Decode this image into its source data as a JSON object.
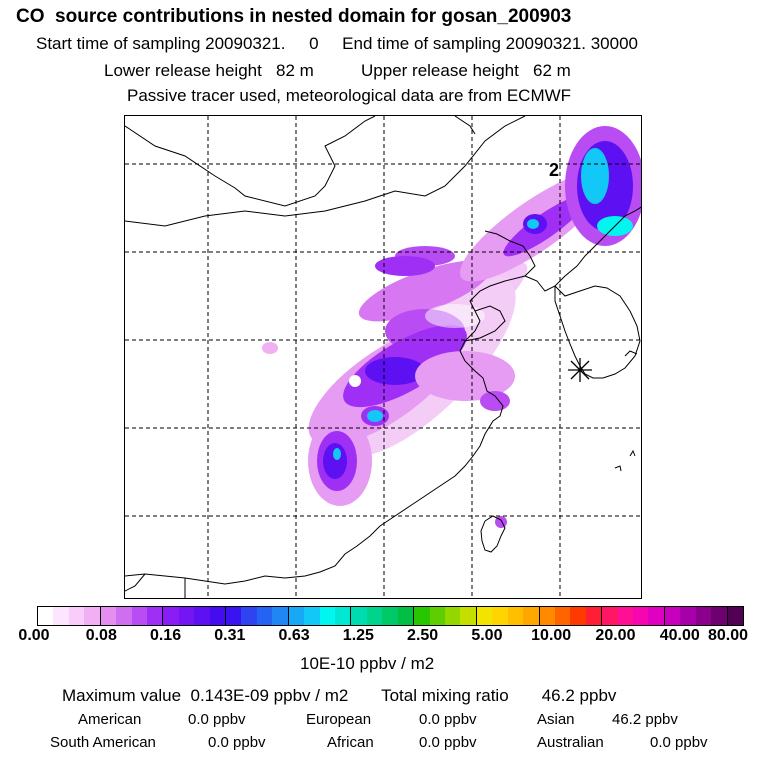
{
  "header": {
    "title": "CO  source contributions in nested domain for gosan_200903",
    "line1": "Start time of sampling 20090321.     0     End time of sampling 20090321. 30000",
    "line2": "Lower release height   82 m          Upper release height   62 m",
    "line3": "Passive tracer used, meteorological data are from ECMWF"
  },
  "map": {
    "station_marker": "asterisk-station-icon",
    "label_2": "2"
  },
  "colorbar": {
    "colors": [
      "#ffffff",
      "#fde6fd",
      "#f9cdf9",
      "#f1b0f3",
      "#e48ff0",
      "#d06ef0",
      "#b94cf2",
      "#a02ff5",
      "#8a1cf5",
      "#7416f3",
      "#5d10f2",
      "#460cf0",
      "#3a14f0",
      "#2e44f1",
      "#2563f2",
      "#1f86f4",
      "#18a9f6",
      "#12c8f7",
      "#00f6ee",
      "#00e8d4",
      "#00dcb0",
      "#00d38c",
      "#00c968",
      "#00bf44",
      "#27c600",
      "#5fce00",
      "#94d600",
      "#c6dd00",
      "#f2e300",
      "#ffd400",
      "#ffbe00",
      "#ffa600",
      "#ff8a00",
      "#ff6400",
      "#ff3a00",
      "#ff1f34",
      "#ff1766",
      "#ff0f94",
      "#f506b0",
      "#e000c2",
      "#c600bd",
      "#a800a8",
      "#8a008c",
      "#6e0070",
      "#520054"
    ],
    "tick_labels": [
      "0.00",
      "0.08",
      "0.16",
      "0.31",
      "0.63",
      "1.25",
      "2.50",
      "5.00",
      "10.00",
      "20.00",
      "40.00",
      "80.00"
    ]
  },
  "unit_label": "10E-10 ppbv / m2",
  "summary": {
    "max_label": "Maximum value",
    "max_value": "0.143E-09 ppbv / m2",
    "total_label": "Total mixing ratio",
    "total_value": "46.2 ppbv",
    "regions": [
      {
        "name": "American",
        "value": "0.0 ppbv"
      },
      {
        "name": "European",
        "value": "0.0 ppbv"
      },
      {
        "name": "Asian",
        "value": "46.2 ppbv"
      },
      {
        "name": "South American",
        "value": "0.0 ppbv"
      },
      {
        "name": "African",
        "value": "0.0 ppbv"
      },
      {
        "name": "Australian",
        "value": "0.0 ppbv"
      }
    ]
  }
}
